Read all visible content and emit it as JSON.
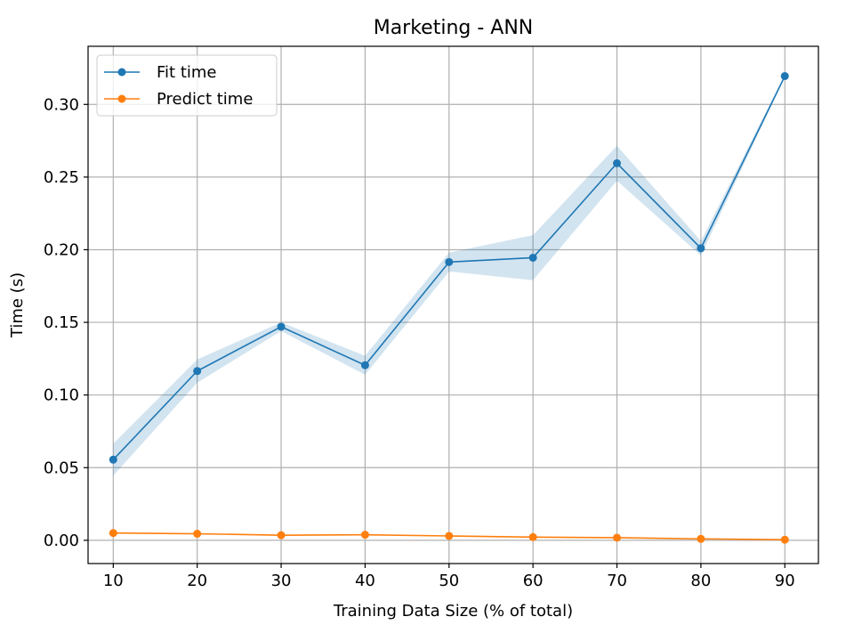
{
  "chart_data": {
    "type": "line",
    "title": "Marketing - ANN",
    "xlabel": "Training Data Size (% of total)",
    "ylabel": "Time (s)",
    "x": [
      10,
      20,
      30,
      40,
      50,
      60,
      70,
      80,
      90
    ],
    "xlim": [
      7,
      94
    ],
    "ylim": [
      -0.016,
      0.34
    ],
    "xticks": [
      "10",
      "20",
      "30",
      "40",
      "50",
      "60",
      "70",
      "80",
      "90"
    ],
    "yticks": [
      "0.00",
      "0.05",
      "0.10",
      "0.15",
      "0.20",
      "0.25",
      "0.30"
    ],
    "grid": true,
    "legend_position": "upper-left",
    "series": [
      {
        "name": "Fit time",
        "color": "#1f77b4",
        "values": [
          0.0555,
          0.1165,
          0.147,
          0.1205,
          0.1915,
          0.1945,
          0.2595,
          0.201,
          0.3195
        ],
        "band_low": [
          0.0445,
          0.1085,
          0.144,
          0.114,
          0.185,
          0.179,
          0.2475,
          0.196,
          0.3185
        ],
        "band_high": [
          0.0665,
          0.1245,
          0.15,
          0.127,
          0.198,
          0.21,
          0.2715,
          0.206,
          0.3205
        ]
      },
      {
        "name": "Predict time",
        "color": "#ff7f0e",
        "values": [
          0.005,
          0.0045,
          0.0035,
          0.0038,
          0.003,
          0.0022,
          0.0018,
          0.001,
          0.0004
        ]
      }
    ]
  }
}
